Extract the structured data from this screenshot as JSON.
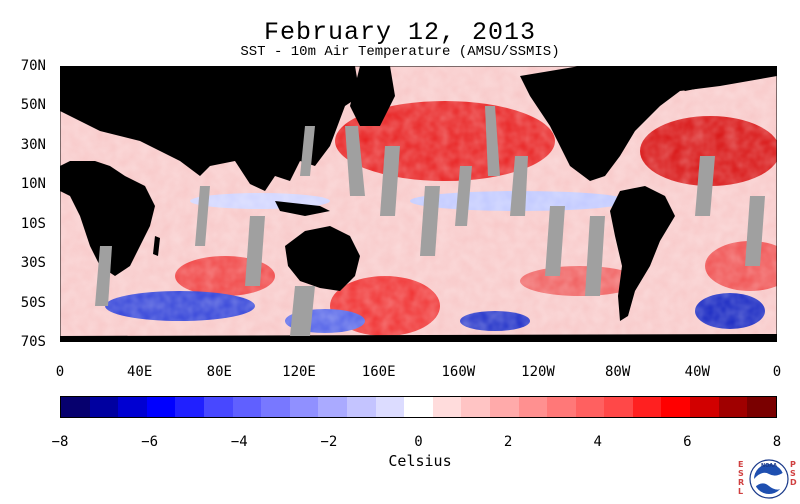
{
  "title": "February 12, 2013",
  "subtitle": "SST - 10m Air Temperature (AMSU/SSMIS)",
  "latitude_labels": [
    "70N",
    "50N",
    "30N",
    "10N",
    "10S",
    "30S",
    "50S",
    "70S"
  ],
  "longitude_labels": [
    "0",
    "40E",
    "80E",
    "120E",
    "160E",
    "160W",
    "120W",
    "80W",
    "40W",
    "0"
  ],
  "colorbar": {
    "ticks": [
      "−8",
      "−6",
      "−4",
      "−2",
      "0",
      "2",
      "4",
      "6",
      "8"
    ],
    "label": "Celsius",
    "colors": [
      "#06006e",
      "#0000a0",
      "#0000d2",
      "#0000ff",
      "#2020ff",
      "#4848ff",
      "#6060ff",
      "#7878ff",
      "#9090ff",
      "#aaaaff",
      "#c4c4ff",
      "#dcdcff",
      "#ffffff",
      "#ffdcdc",
      "#ffc4c4",
      "#ffaaaa",
      "#ff9090",
      "#ff7878",
      "#ff6060",
      "#ff4848",
      "#ff2020",
      "#ff0000",
      "#d20000",
      "#a00000",
      "#7a0000"
    ]
  },
  "map_colors": {
    "land": "#000000",
    "missing": "#a0a0a0",
    "warm": "#e02020",
    "cool": "#2030e0",
    "neutral": "#ffffff"
  },
  "logo": {
    "left_letters": "ESRL",
    "right_letters": "PSD",
    "center": "NOAA"
  }
}
